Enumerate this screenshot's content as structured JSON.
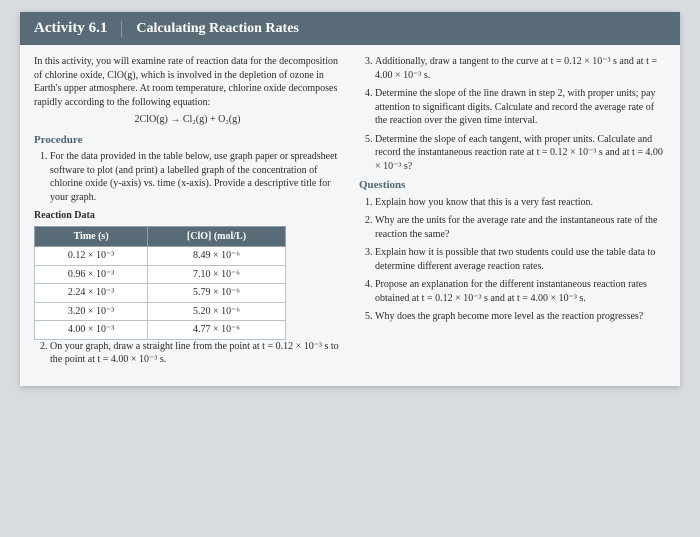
{
  "header": {
    "label": "Activity 6.1",
    "title": "Calculating Reaction Rates"
  },
  "intro": "In this activity, you will examine rate of reaction data for the decomposition of chlorine oxide, ClO(g), which is involved in the depletion of ozone in Earth's upper atmosphere. At room temperature, chlorine oxide decomposes rapidly according to the following equation:",
  "equation": "2ClO(g) → Cl₂(g) + O₂(g)",
  "procedure_heading": "Procedure",
  "steps": {
    "s1": "For the data provided in the table below, use graph paper or spreadsheet software to plot (and print) a labelled graph of the concentration of chlorine oxide (y-axis) vs. time (x-axis). Provide a descriptive title for your graph.",
    "s2": "On your graph, draw a straight line from the point at t = 0.12 × 10⁻³ s to the point at t = 4.00 × 10⁻³ s.",
    "s3": "Additionally, draw a tangent to the curve at t = 0.12 × 10⁻³ s and at t = 4.00 × 10⁻³ s.",
    "s4": "Determine the slope of the line drawn in step 2, with proper units; pay attention to significant digits. Calculate and record the average rate of the reaction over the given time interval.",
    "s5": "Determine the slope of each tangent, with proper units. Calculate and record the instantaneous reaction rate at t = 0.12 × 10⁻³ s and at t = 4.00 × 10⁻³ s?"
  },
  "table": {
    "title": "Reaction Data",
    "col1": "Time (s)",
    "col2": "[ClO] (mol/L)",
    "rows": [
      {
        "t": "0.12 × 10⁻³",
        "c": "8.49 × 10⁻⁶"
      },
      {
        "t": "0.96 × 10⁻³",
        "c": "7.10 × 10⁻⁶"
      },
      {
        "t": "2.24 × 10⁻³",
        "c": "5.79 × 10⁻⁶"
      },
      {
        "t": "3.20 × 10⁻³",
        "c": "5.20 × 10⁻⁶"
      },
      {
        "t": "4.00 × 10⁻³",
        "c": "4.77 × 10⁻⁶"
      }
    ]
  },
  "questions_heading": "Questions",
  "questions": {
    "q1": "Explain how you know that this is a very fast reaction.",
    "q2": "Why are the units for the average rate and the instantaneous rate of the reaction the same?",
    "q3": "Explain how it is possible that two students could use the table data to determine different average reaction rates.",
    "q4": "Propose an explanation for the different instantaneous reaction rates obtained at t = 0.12 × 10⁻³ s and at t = 4.00 × 10⁻³ s.",
    "q5": "Why does the graph become more level as the reaction progresses?"
  },
  "colors": {
    "header_bg": "#5a6b78",
    "page_bg": "#f5f6f7",
    "body_bg": "#d8dce0",
    "heading_color": "#4e6573",
    "text_color": "#2b2b2b",
    "cell_border": "#b9c2c9"
  }
}
